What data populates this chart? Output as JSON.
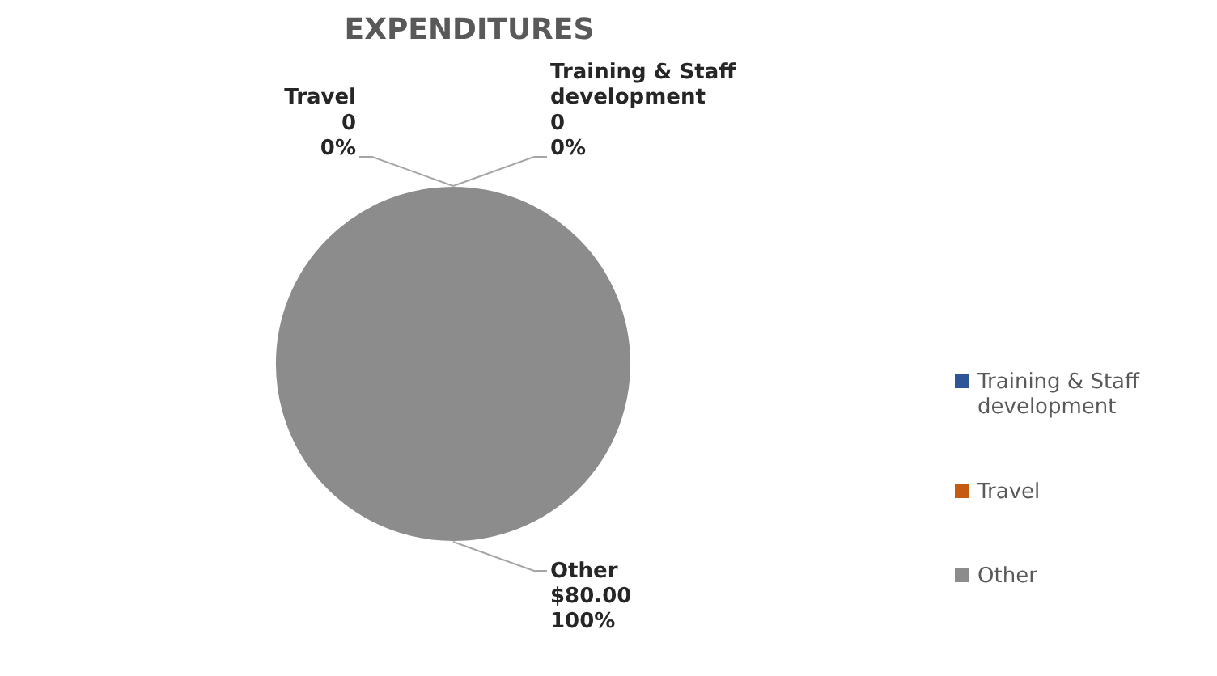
{
  "chart_data": {
    "type": "pie",
    "title": "EXPENDITURES",
    "categories": [
      "Training & Staff development",
      "Travel",
      "Other"
    ],
    "values": [
      0,
      0,
      80
    ],
    "value_labels": [
      "0",
      "0",
      "$80.00"
    ],
    "annotations": [
      "0%",
      "0%",
      "100%"
    ],
    "colors": [
      "#2e5597",
      "#c55a11",
      "#8c8c8c"
    ],
    "legend": "right"
  }
}
